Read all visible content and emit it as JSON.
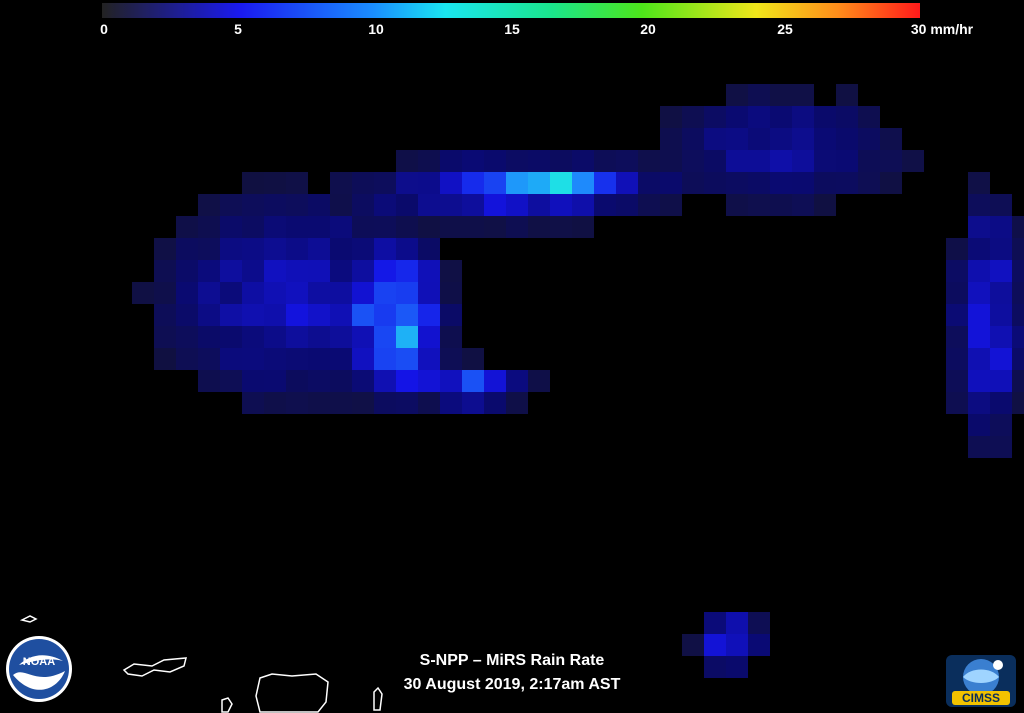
{
  "colorbar": {
    "ticks": [
      "0",
      "5",
      "10",
      "15",
      "20",
      "25",
      "30 mm/hr"
    ],
    "tick_values": [
      0,
      5,
      10,
      15,
      20,
      25,
      30
    ],
    "min": 0,
    "max": 30,
    "colors": [
      "#1a1a1a",
      "#1a1ae6",
      "#1aa3ff",
      "#1ae6e6",
      "#1ae61a",
      "#e6e61a",
      "#ff8c1a",
      "#ff1a1a"
    ]
  },
  "caption": {
    "line1": "S-NPP – MiRS Rain Rate",
    "line2": "30 August 2019, 2:17am AST"
  },
  "logos": {
    "noaa": "NOAA",
    "cimss": "CIMSS"
  },
  "map": {
    "background": "#000000",
    "coastline_color": "#ffffff"
  }
}
